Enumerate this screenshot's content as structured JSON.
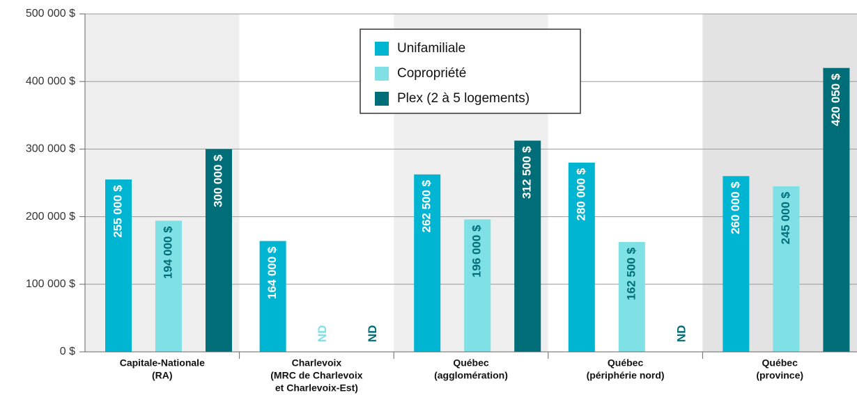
{
  "chart_data": {
    "type": "bar",
    "categories": [
      [
        "Capitale-Nationale",
        "(RA)"
      ],
      [
        "Charlevoix",
        "(MRC de Charlevoix",
        "et Charlevoix-Est)"
      ],
      [
        "Québec",
        "(agglomération)"
      ],
      [
        "Québec",
        "(périphérie nord)"
      ],
      [
        "Québec",
        "(province)"
      ]
    ],
    "series": [
      {
        "name": "Unifamiliale",
        "color": "#00b5d1",
        "label_color": "#ffffff",
        "values": [
          255000,
          164000,
          262500,
          280000,
          260000
        ],
        "value_labels": [
          "255 000 $",
          "164 000 $",
          "262 500 $",
          "280 000 $",
          "260 000 $"
        ]
      },
      {
        "name": "Copropriété",
        "color": "#7fe0e6",
        "label_color": "#006e78",
        "values": [
          194000,
          null,
          196000,
          162500,
          245000
        ],
        "value_labels": [
          "194 000 $",
          "ND",
          "196 000 $",
          "162 500 $",
          "245 000 $"
        ]
      },
      {
        "name": "Plex (2 à 5 logements)",
        "color": "#006e78",
        "label_color": "#ffffff",
        "values": [
          300000,
          null,
          312500,
          null,
          420050
        ],
        "value_labels": [
          "300 000 $",
          "ND",
          "312 500 $",
          "ND",
          "420 050 $"
        ]
      }
    ],
    "ylim": [
      0,
      500000
    ],
    "yticks": [
      {
        "value": 0,
        "label": "0 $"
      },
      {
        "value": 100000,
        "label": "100 000 $"
      },
      {
        "value": 200000,
        "label": "200 000 $"
      },
      {
        "value": 300000,
        "label": "300 000 $"
      },
      {
        "value": 400000,
        "label": "400 000 $"
      },
      {
        "value": 500000,
        "label": "500 000 $"
      }
    ],
    "grid": true,
    "legend": "top"
  }
}
